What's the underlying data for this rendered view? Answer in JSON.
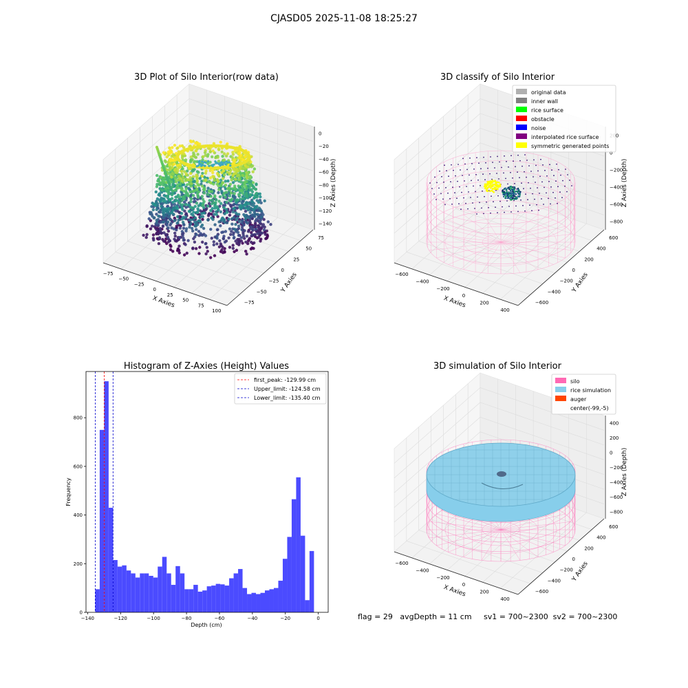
{
  "figure": {
    "suptitle": "CJASD05 2025-11-08 18:25:27",
    "status_line": "flag = 29   avgDepth = 11 cm     sv1 = 700~2300  sv2 = 700~2300"
  },
  "chart_data": [
    {
      "type": "scatter",
      "projection": "3d",
      "title": "3D Plot of Silo Interior(row data)",
      "xlabel": "X Axies",
      "ylabel": "Y Axies",
      "zlabel": "Z Axies (Depth)",
      "x_ticks": [
        -75,
        -50,
        -25,
        0,
        25,
        50,
        75,
        100
      ],
      "y_ticks": [
        -75,
        -50,
        -25,
        0,
        25,
        50,
        75
      ],
      "z_ticks": [
        0,
        -20,
        -40,
        -60,
        -80,
        -100,
        -120,
        -140
      ],
      "xlim": [
        -90,
        105
      ],
      "ylim": [
        -90,
        90
      ],
      "zlim": [
        -145,
        5
      ],
      "colormap": "viridis",
      "grid": true
    },
    {
      "type": "scatter",
      "projection": "3d",
      "title": "3D classify of Silo Interior",
      "xlabel": "X Axies",
      "ylabel": "Y Axies",
      "zlabel": "Z Axies (Depth)",
      "x_ticks": [
        -600,
        -400,
        -200,
        0,
        200,
        400
      ],
      "y_ticks": [
        -600,
        -400,
        -200,
        0,
        200,
        400,
        600
      ],
      "z_ticks": [
        200,
        0,
        -200,
        -400,
        -600,
        -800
      ],
      "legend_position": "upper-right",
      "legend": [
        {
          "label": "original data",
          "color": "#b0b0b0"
        },
        {
          "label": "inner wall",
          "color": "#808080"
        },
        {
          "label": "rice surface",
          "color": "#00ff00"
        },
        {
          "label": "obstacle",
          "color": "#ff0000"
        },
        {
          "label": "noise",
          "color": "#0000ff"
        },
        {
          "label": "interpolated rice surface",
          "color": "#800080"
        },
        {
          "label": "symmetric generated points",
          "color": "#ffff00"
        }
      ],
      "grid": true
    },
    {
      "type": "bar",
      "title": "Histogram of Z-Axies (Height) Values",
      "xlabel": "Depth (cm)",
      "ylabel": "Frequency",
      "xlim": [
        -141,
        6
      ],
      "ylim": [
        0,
        990
      ],
      "x_ticks": [
        -140,
        -120,
        -100,
        -80,
        -60,
        -40,
        -20,
        0
      ],
      "y_ticks": [
        0,
        200,
        400,
        600,
        800
      ],
      "bar_color": "#4b4bff",
      "bin_edges_start": -135.4,
      "bin_width": 2.71,
      "values": [
        95,
        750,
        950,
        430,
        215,
        188,
        193,
        172,
        160,
        143,
        160,
        160,
        150,
        143,
        188,
        228,
        160,
        113,
        190,
        160,
        95,
        95,
        113,
        85,
        90,
        107,
        110,
        117,
        115,
        110,
        140,
        160,
        178,
        100,
        75,
        80,
        75,
        80,
        90,
        95,
        100,
        130,
        220,
        310,
        465,
        555,
        315,
        50,
        252
      ],
      "vlines": [
        {
          "x": -129.99,
          "label": "first_peak: -129.99 cm",
          "color": "#ff0000"
        },
        {
          "x": -124.58,
          "label": "Upper_limit: -124.58 cm",
          "color": "#0000cc"
        },
        {
          "x": -135.4,
          "label": "Lower_limit: -135.40 cm",
          "color": "#0000cc"
        }
      ],
      "legend_position": "upper-right"
    },
    {
      "type": "scatter",
      "projection": "3d",
      "title": "3D simulation of Silo Interior",
      "xlabel": "X Axies",
      "ylabel": "Y Axies",
      "zlabel": "Z Axies (Depth)",
      "x_ticks": [
        -600,
        -400,
        -200,
        0,
        200,
        400
      ],
      "y_ticks": [
        -600,
        -400,
        -200,
        0,
        200,
        400,
        600
      ],
      "z_ticks": [
        400,
        200,
        0,
        -200,
        -400,
        -600,
        -800
      ],
      "legend_position": "upper-right",
      "legend": [
        {
          "label": "silo",
          "color": "#ff69b4"
        },
        {
          "label": "rice simulation",
          "color": "#87ceeb"
        },
        {
          "label": "auger",
          "color": "#ff4500"
        },
        {
          "label": "center(-99,-5)",
          "color": "none"
        }
      ],
      "grid": true
    }
  ]
}
